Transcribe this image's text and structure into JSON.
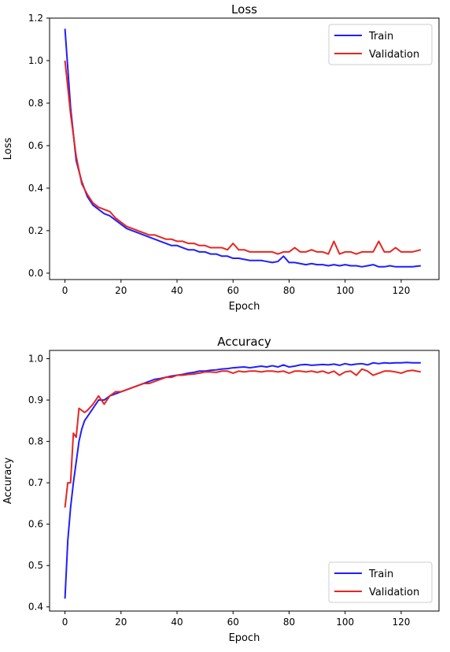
{
  "chart_data": [
    {
      "type": "line",
      "title": "Loss",
      "xlabel": "Epoch",
      "ylabel": "Loss",
      "xlim": [
        -5.5,
        133.5
      ],
      "ylim": [
        -0.03,
        1.2
      ],
      "xticks": [
        0,
        20,
        40,
        60,
        80,
        100,
        120
      ],
      "yticks": [
        0.0,
        0.2,
        0.4,
        0.6,
        0.8,
        1.0,
        1.2
      ],
      "ytick_labels": [
        "0.0",
        "0.2",
        "0.4",
        "0.6",
        "0.8",
        "1.0",
        "1.2"
      ],
      "grid": false,
      "legend": "top-right",
      "x": [
        0,
        2,
        4,
        6,
        8,
        10,
        12,
        14,
        16,
        18,
        20,
        22,
        24,
        26,
        28,
        30,
        32,
        34,
        36,
        38,
        40,
        42,
        44,
        46,
        48,
        50,
        52,
        54,
        56,
        58,
        60,
        62,
        64,
        66,
        68,
        70,
        72,
        74,
        76,
        78,
        80,
        82,
        84,
        86,
        88,
        90,
        92,
        94,
        96,
        98,
        100,
        102,
        104,
        106,
        108,
        110,
        112,
        114,
        116,
        118,
        120,
        122,
        124,
        127
      ],
      "series": [
        {
          "name": "Train",
          "color": "#1f1fff",
          "values": [
            1.15,
            0.78,
            0.53,
            0.43,
            0.36,
            0.32,
            0.3,
            0.28,
            0.27,
            0.25,
            0.23,
            0.21,
            0.2,
            0.19,
            0.18,
            0.17,
            0.16,
            0.15,
            0.14,
            0.13,
            0.13,
            0.12,
            0.11,
            0.11,
            0.1,
            0.1,
            0.09,
            0.09,
            0.08,
            0.08,
            0.07,
            0.07,
            0.065,
            0.06,
            0.06,
            0.06,
            0.055,
            0.05,
            0.055,
            0.08,
            0.05,
            0.05,
            0.045,
            0.04,
            0.045,
            0.04,
            0.04,
            0.035,
            0.04,
            0.035,
            0.04,
            0.035,
            0.035,
            0.03,
            0.035,
            0.04,
            0.03,
            0.03,
            0.035,
            0.03,
            0.03,
            0.03,
            0.03,
            0.035
          ]
        },
        {
          "name": "Validation",
          "color": "#e8251f",
          "values": [
            1.0,
            0.75,
            0.55,
            0.42,
            0.37,
            0.33,
            0.31,
            0.3,
            0.29,
            0.26,
            0.24,
            0.22,
            0.21,
            0.2,
            0.19,
            0.18,
            0.18,
            0.17,
            0.16,
            0.16,
            0.15,
            0.15,
            0.14,
            0.14,
            0.13,
            0.13,
            0.12,
            0.12,
            0.12,
            0.11,
            0.14,
            0.11,
            0.11,
            0.1,
            0.1,
            0.1,
            0.1,
            0.1,
            0.09,
            0.1,
            0.1,
            0.12,
            0.1,
            0.1,
            0.11,
            0.1,
            0.1,
            0.09,
            0.15,
            0.09,
            0.1,
            0.1,
            0.09,
            0.1,
            0.1,
            0.1,
            0.15,
            0.1,
            0.1,
            0.12,
            0.1,
            0.1,
            0.1,
            0.11
          ]
        }
      ]
    },
    {
      "type": "line",
      "title": "Accuracy",
      "xlabel": "Epoch",
      "ylabel": "Accuracy",
      "xlim": [
        -5.5,
        133.5
      ],
      "ylim": [
        0.39,
        1.02
      ],
      "xticks": [
        0,
        20,
        40,
        60,
        80,
        100,
        120
      ],
      "yticks": [
        0.4,
        0.5,
        0.6,
        0.7,
        0.8,
        0.9,
        1.0
      ],
      "ytick_labels": [
        "0.4",
        "0.5",
        "0.6",
        "0.7",
        "0.8",
        "0.9",
        "1.0"
      ],
      "grid": false,
      "legend": "bottom-right",
      "x": [
        0,
        1,
        2,
        3,
        4,
        5,
        6,
        7,
        8,
        10,
        12,
        14,
        16,
        18,
        20,
        22,
        24,
        26,
        28,
        30,
        32,
        34,
        36,
        38,
        40,
        42,
        44,
        46,
        48,
        50,
        52,
        54,
        56,
        58,
        60,
        62,
        64,
        66,
        68,
        70,
        72,
        74,
        76,
        78,
        80,
        82,
        84,
        86,
        88,
        90,
        92,
        94,
        96,
        98,
        100,
        102,
        104,
        106,
        108,
        110,
        112,
        114,
        116,
        118,
        120,
        122,
        124,
        127
      ],
      "series": [
        {
          "name": "Train",
          "color": "#1f1fff",
          "values": [
            0.42,
            0.56,
            0.64,
            0.7,
            0.75,
            0.8,
            0.83,
            0.85,
            0.86,
            0.88,
            0.9,
            0.9,
            0.91,
            0.915,
            0.92,
            0.925,
            0.93,
            0.935,
            0.94,
            0.945,
            0.95,
            0.952,
            0.955,
            0.958,
            0.96,
            0.962,
            0.965,
            0.967,
            0.97,
            0.97,
            0.972,
            0.973,
            0.975,
            0.976,
            0.978,
            0.979,
            0.98,
            0.978,
            0.98,
            0.982,
            0.98,
            0.983,
            0.98,
            0.985,
            0.98,
            0.982,
            0.985,
            0.986,
            0.984,
            0.985,
            0.986,
            0.985,
            0.987,
            0.984,
            0.988,
            0.985,
            0.987,
            0.988,
            0.985,
            0.99,
            0.988,
            0.99,
            0.989,
            0.99,
            0.99,
            0.991,
            0.99,
            0.99
          ]
        },
        {
          "name": "Validation",
          "color": "#e8251f",
          "values": [
            0.64,
            0.7,
            0.7,
            0.82,
            0.81,
            0.88,
            0.875,
            0.87,
            0.875,
            0.89,
            0.91,
            0.89,
            0.91,
            0.92,
            0.92,
            0.925,
            0.93,
            0.935,
            0.94,
            0.94,
            0.945,
            0.95,
            0.955,
            0.955,
            0.96,
            0.96,
            0.962,
            0.963,
            0.965,
            0.968,
            0.968,
            0.967,
            0.97,
            0.97,
            0.965,
            0.97,
            0.968,
            0.97,
            0.97,
            0.968,
            0.97,
            0.97,
            0.968,
            0.97,
            0.965,
            0.97,
            0.97,
            0.968,
            0.97,
            0.967,
            0.97,
            0.965,
            0.97,
            0.96,
            0.968,
            0.97,
            0.96,
            0.975,
            0.97,
            0.96,
            0.965,
            0.97,
            0.97,
            0.968,
            0.965,
            0.97,
            0.972,
            0.968
          ]
        }
      ]
    }
  ]
}
